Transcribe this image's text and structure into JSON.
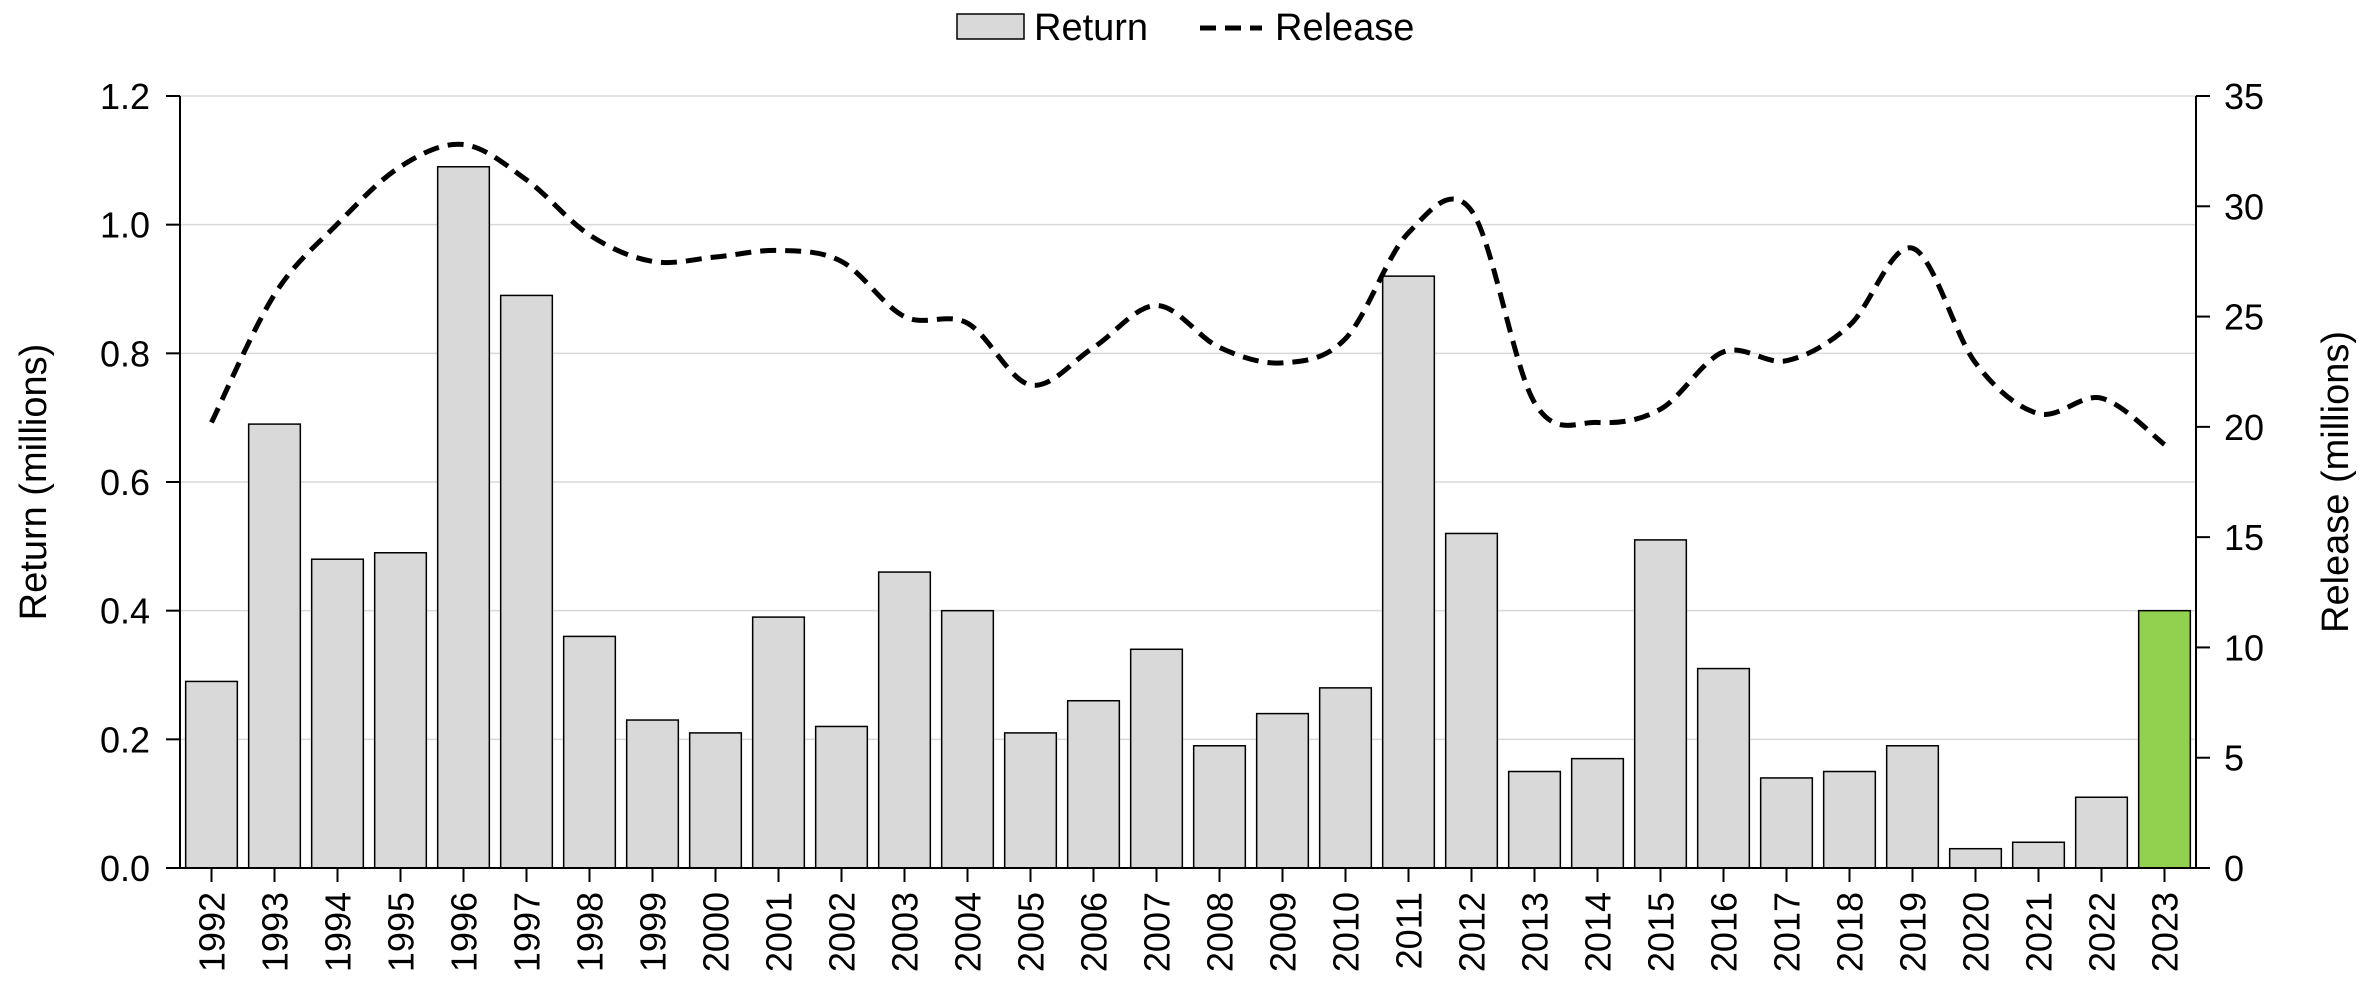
{
  "chart_data": {
    "type": "bar",
    "categories": [
      "1992",
      "1993",
      "1994",
      "1995",
      "1996",
      "1997",
      "1998",
      "1999",
      "2000",
      "2001",
      "2002",
      "2003",
      "2004",
      "2005",
      "2006",
      "2007",
      "2008",
      "2009",
      "2010",
      "2011",
      "2012",
      "2013",
      "2014",
      "2015",
      "2016",
      "2017",
      "2018",
      "2019",
      "2020",
      "2021",
      "2022",
      "2023"
    ],
    "series": [
      {
        "name": "Return",
        "type": "bar",
        "axis": "left",
        "color": "#d9d9d9",
        "values": [
          0.29,
          0.69,
          0.48,
          0.49,
          1.09,
          0.89,
          0.36,
          0.23,
          0.21,
          0.39,
          0.22,
          0.46,
          0.4,
          0.21,
          0.26,
          0.34,
          0.19,
          0.24,
          0.28,
          0.92,
          0.52,
          0.15,
          0.17,
          0.51,
          0.31,
          0.14,
          0.15,
          0.19,
          0.03,
          0.04,
          0.11,
          0.4
        ]
      },
      {
        "name": "Release",
        "type": "line",
        "axis": "right",
        "style": "dashed",
        "color": "#000000",
        "values": [
          20.2,
          26.0,
          29.2,
          31.8,
          32.8,
          31.2,
          28.7,
          27.5,
          27.7,
          28.0,
          27.5,
          25.0,
          24.7,
          21.9,
          23.6,
          25.5,
          23.6,
          22.9,
          24.0,
          28.8,
          29.8,
          21.1,
          20.2,
          20.8,
          23.4,
          23.0,
          24.6,
          28.1,
          22.9,
          20.6,
          21.3,
          19.2
        ]
      }
    ],
    "highlight": {
      "category": "2023",
      "color": "#92d050"
    },
    "ylabel": "Return (millions)",
    "y2label": "Release (millions)",
    "ylim": [
      0,
      1.2
    ],
    "y2lim": [
      0,
      35
    ],
    "yticks": [
      "0.0",
      "0.2",
      "0.4",
      "0.6",
      "0.8",
      "1.0",
      "1.2"
    ],
    "y2ticks": [
      "0",
      "5",
      "10",
      "15",
      "20",
      "25",
      "30",
      "35"
    ],
    "grid": true,
    "legend_position": "top-center"
  }
}
